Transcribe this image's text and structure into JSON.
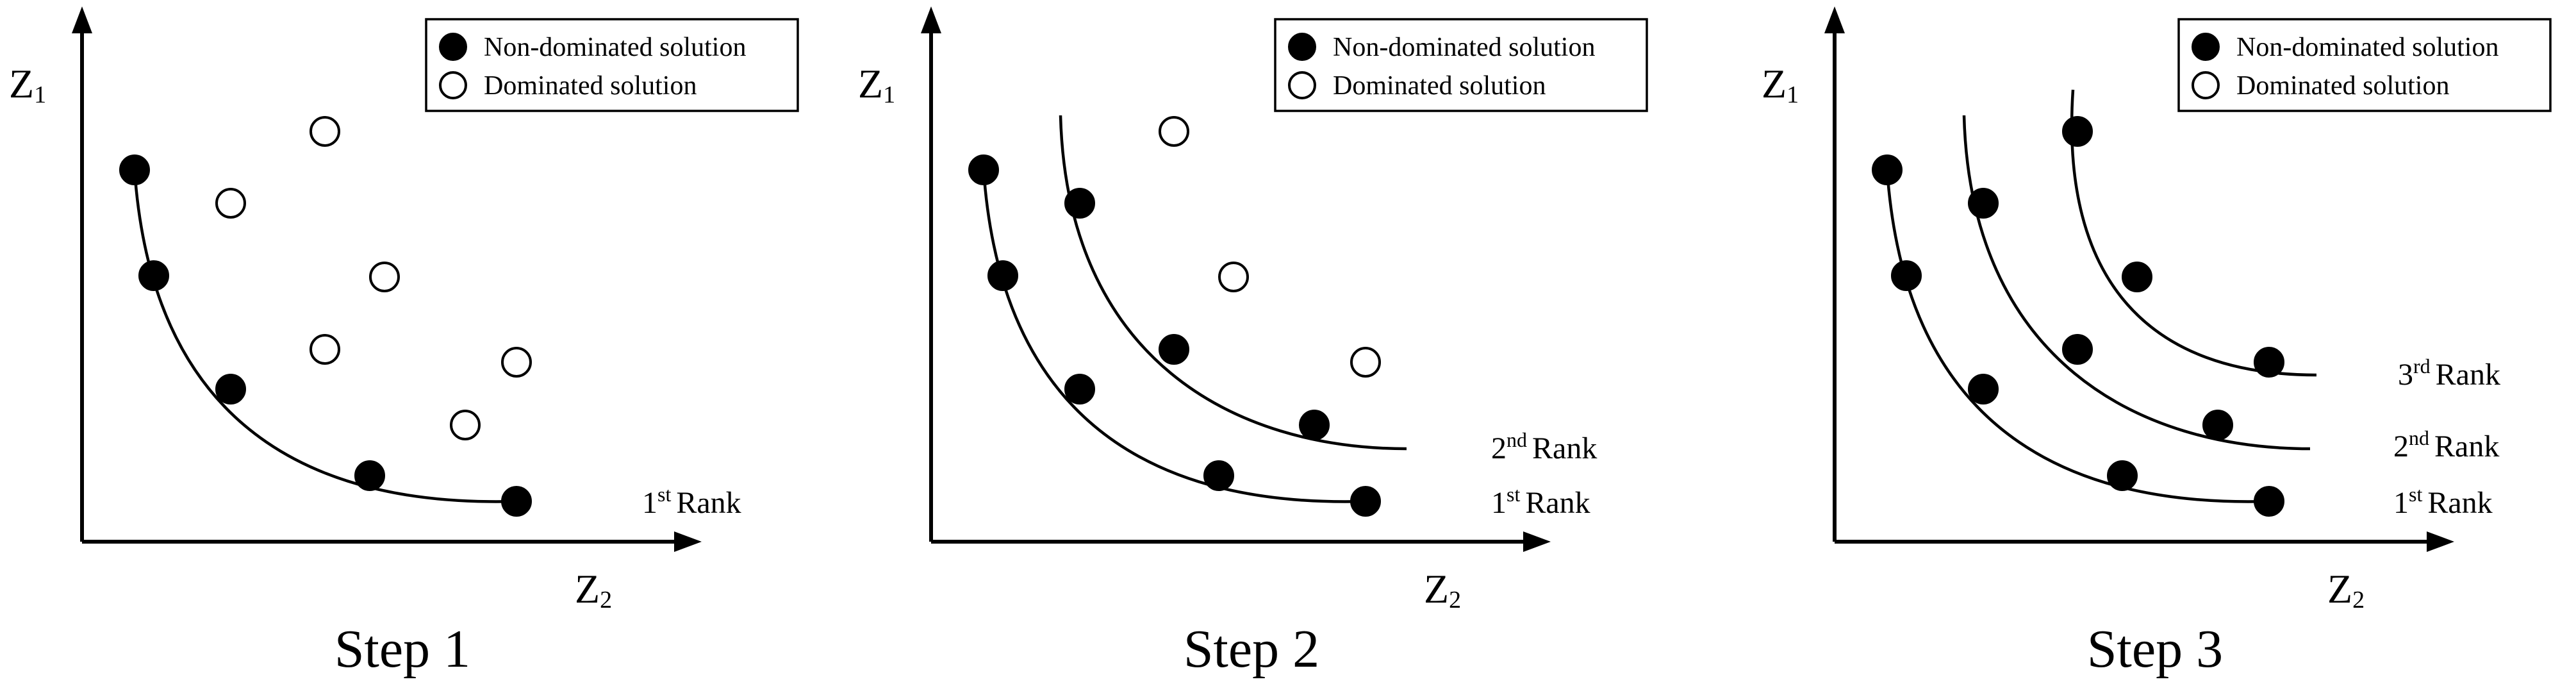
{
  "legend": {
    "non_dominated": "Non-dominated solution",
    "dominated": "Dominated solution"
  },
  "axes": {
    "y_label": "Z",
    "y_sub": "1",
    "x_label": "Z",
    "x_sub": "2"
  },
  "rank_word": "Rank",
  "panels": [
    {
      "title": "Step 1",
      "ranks": [
        {
          "num": "1",
          "sup": "st"
        }
      ],
      "filled_points": [
        [
          210,
          265
        ],
        [
          240,
          430
        ],
        [
          360,
          607
        ],
        [
          577,
          742
        ],
        [
          806,
          782
        ]
      ],
      "hollow_points": [
        [
          507,
          205
        ],
        [
          360,
          317
        ],
        [
          600,
          432
        ],
        [
          507,
          545
        ],
        [
          806,
          565
        ],
        [
          726,
          663
        ]
      ],
      "curves": [
        "M210,265 C240,700 530,790 806,782"
      ]
    },
    {
      "title": "Step 2",
      "ranks": [
        {
          "num": "1",
          "sup": "st"
        },
        {
          "num": "2",
          "sup": "nd"
        }
      ],
      "filled_points": [
        [
          210,
          265
        ],
        [
          240,
          430
        ],
        [
          360,
          607
        ],
        [
          577,
          742
        ],
        [
          806,
          782
        ],
        [
          360,
          317
        ],
        [
          507,
          545
        ],
        [
          726,
          663
        ]
      ],
      "hollow_points": [
        [
          507,
          205
        ],
        [
          600,
          432
        ],
        [
          806,
          565
        ]
      ],
      "curves": [
        "M210,265 C240,700 530,790 806,782",
        "M330,180 C340,560 600,700 870,700"
      ]
    },
    {
      "title": "Step 3",
      "ranks": [
        {
          "num": "1",
          "sup": "st"
        },
        {
          "num": "2",
          "sup": "nd"
        },
        {
          "num": "3",
          "sup": "rd"
        }
      ],
      "filled_points": [
        [
          210,
          265
        ],
        [
          240,
          430
        ],
        [
          360,
          607
        ],
        [
          577,
          742
        ],
        [
          806,
          782
        ],
        [
          360,
          317
        ],
        [
          507,
          545
        ],
        [
          726,
          663
        ],
        [
          507,
          205
        ],
        [
          600,
          432
        ],
        [
          806,
          565
        ]
      ],
      "hollow_points": [],
      "curves": [
        "M210,265 C240,700 530,790 806,782",
        "M330,180 C340,560 600,700 870,700",
        "M500,140 C480,440 620,585 880,585"
      ]
    }
  ]
}
